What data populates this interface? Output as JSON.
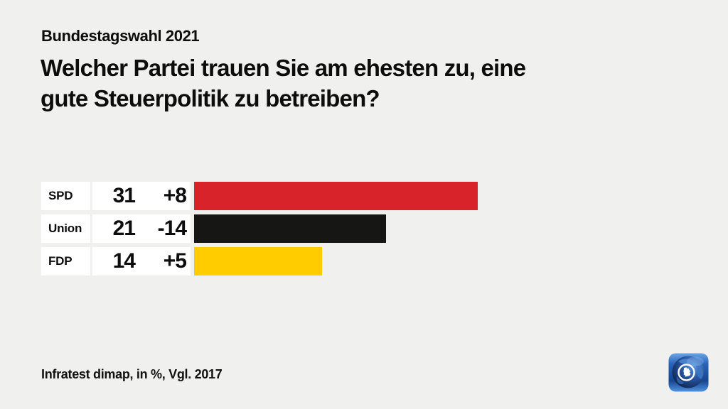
{
  "page": {
    "background": "#f0f0ee"
  },
  "header": {
    "kicker": "Bundestagswahl 2021",
    "title_lines": [
      "Welcher Partei trauen Sie am ehesten zu, eine",
      "gute Steuerpolitik zu betreiben?"
    ]
  },
  "footer": {
    "source": "Infratest dimap, in %, Vgl. 2017"
  },
  "logo": {
    "name": "tagesschau-globe-logo"
  },
  "chart_data": {
    "type": "bar",
    "orientation": "horizontal",
    "kicker": "Bundestagswahl 2021",
    "title": "Welcher Partei trauen Sie am ehesten zu, eine gute Steuerpolitik zu betreiben?",
    "unit": "%",
    "comparison": "Vgl. 2017",
    "source": "Infratest dimap, in %, Vgl. 2017",
    "xlim": [
      0,
      31
    ],
    "grid": false,
    "legend": false,
    "categories": [
      "SPD",
      "Union",
      "FDP"
    ],
    "values": [
      31,
      21,
      14
    ],
    "changes": [
      "+8",
      "-14",
      "+5"
    ],
    "rows": [
      {
        "party": "SPD",
        "value": 31,
        "change": "+8",
        "color": "#d8232a"
      },
      {
        "party": "Union",
        "value": 21,
        "change": "-14",
        "color": "#161614"
      },
      {
        "party": "FDP",
        "value": 14,
        "change": "+5",
        "color": "#ffcc00"
      }
    ]
  }
}
